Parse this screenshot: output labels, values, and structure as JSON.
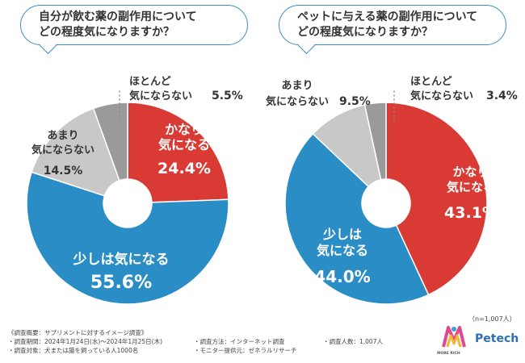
{
  "chart_data": [
    {
      "type": "pie",
      "title": [
        "自分が飲む薬の副作用について",
        "どの程度気になりますか？"
      ],
      "slices": [
        {
          "label": [
            "かなり",
            "気になる"
          ],
          "value": 24.4,
          "value_text": "24.4%",
          "color": "#d93a34"
        },
        {
          "label": [
            "少しは気になる"
          ],
          "value": 55.6,
          "value_text": "55.6%",
          "color": "#2b8dc6"
        },
        {
          "label": [
            "あまり",
            "気にならない"
          ],
          "value": 14.5,
          "value_text": "14.5%",
          "color": "#c8c8c8"
        },
        {
          "label": [
            "ほとんど",
            "気にならない"
          ],
          "value": 5.5,
          "value_text": "5.5%",
          "color": "#9a9a9a"
        }
      ]
    },
    {
      "type": "pie",
      "title": [
        "ペットに与える薬の副作用について",
        "どの程度気になりますか？"
      ],
      "slices": [
        {
          "label": [
            "かなり",
            "気になる"
          ],
          "value": 43.1,
          "value_text": "43.1%",
          "color": "#d93a34"
        },
        {
          "label": [
            "少しは",
            "気になる"
          ],
          "value": 44.0,
          "value_text": "44.0%",
          "color": "#2b8dc6"
        },
        {
          "label": [
            "あまり",
            "気にならない"
          ],
          "value": 9.5,
          "value_text": "9.5%",
          "color": "#c8c8c8"
        },
        {
          "label": [
            "ほとんど",
            "気にならない"
          ],
          "value": 3.4,
          "value_text": "3.4%",
          "color": "#9a9a9a"
        }
      ]
    }
  ],
  "sample_note": "（n=1,007人）",
  "footer": {
    "overview": "《調査概要：サプリメントに対するイメージ調査》",
    "period": "・調査期間：2024年1月24日(水)～2024年1月25日(木)",
    "target": "・調査対象：犬または猫を飼っている人1000名",
    "method": "・調査方法：インターネット調査",
    "provider": "・モニター提供元：ゼネラルリサーチ",
    "count": "・調査人数：1,007人"
  },
  "brand": {
    "small_logo_text": "MORE RICH",
    "name": "Petech"
  }
}
